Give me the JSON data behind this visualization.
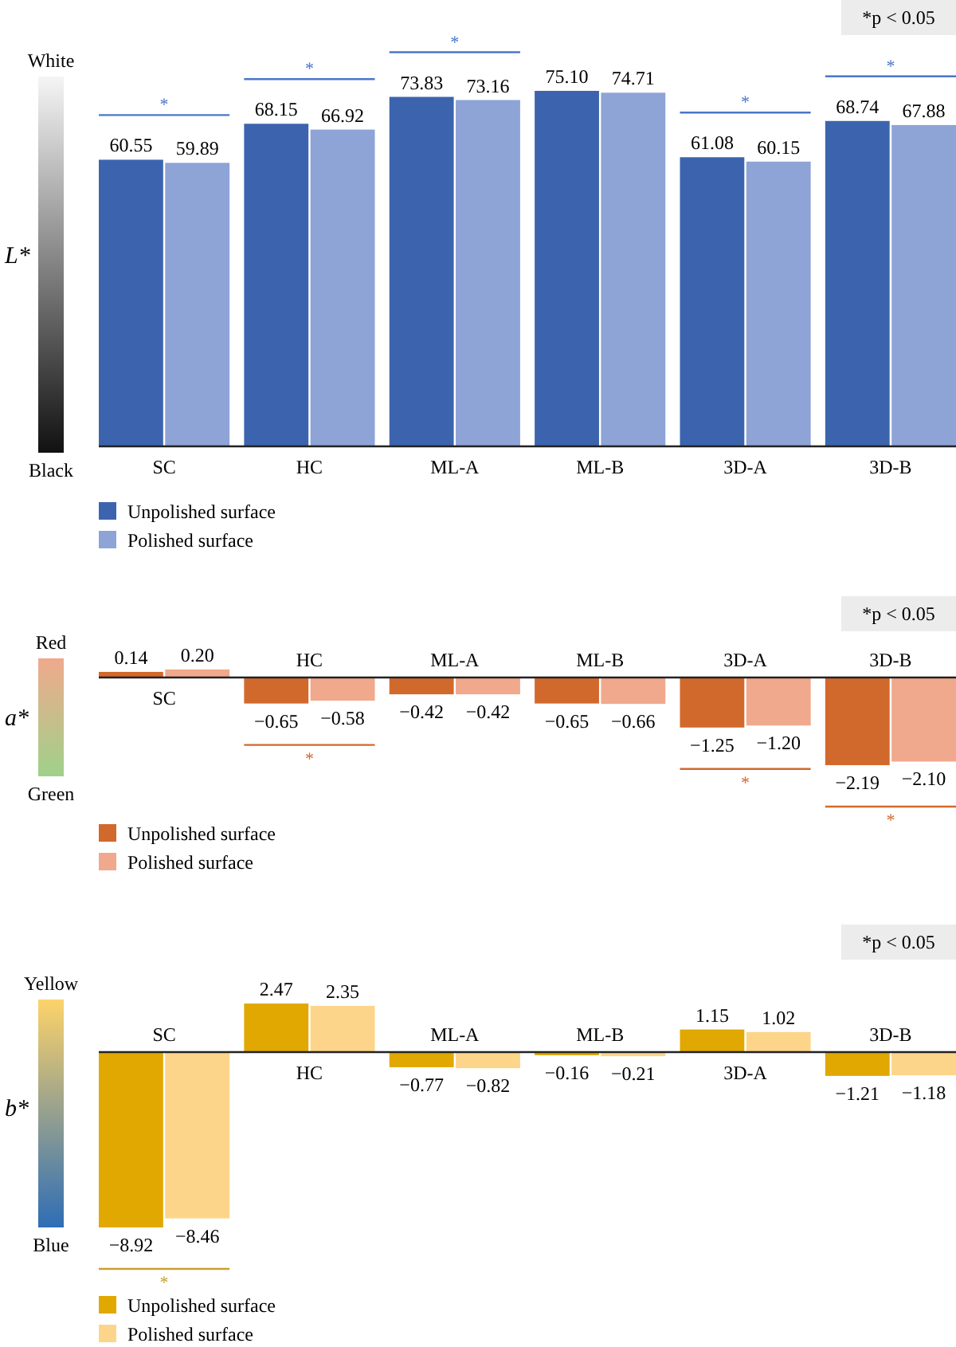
{
  "chart_data": [
    {
      "type": "bar",
      "ylabel": "L*",
      "categories": [
        "SC",
        "HC",
        "ML-A",
        "ML-B",
        "3D-A",
        "3D-B"
      ],
      "series": [
        {
          "name": "Unpolished surface",
          "color": "#3c64ae",
          "values": [
            60.55,
            68.15,
            73.83,
            75.1,
            61.08,
            68.74
          ],
          "value_labels": [
            "60.55",
            "68.15",
            "73.83",
            "75.10",
            "61.08",
            "68.74"
          ]
        },
        {
          "name": "Polished surface",
          "color": "#8ea3d6",
          "values": [
            59.89,
            66.92,
            73.16,
            74.71,
            60.15,
            67.88
          ],
          "value_labels": [
            "59.89",
            "66.92",
            "73.16",
            "74.71",
            "60.15",
            "67.88"
          ]
        }
      ],
      "tick_labels": "x",
      "legend": "bottom left",
      "annotations": [
        "*p < 0.05",
        "White",
        "Black",
        {
          "text": "*",
          "x": "SC",
          "y": 60.55
        },
        {
          "text": "*",
          "x": "HC",
          "y": 68.15
        },
        {
          "text": "*",
          "x": "ML-A",
          "y": 73.83
        },
        {
          "text": "*",
          "x": "3D-A",
          "y": 61.08
        },
        {
          "text": "*",
          "x": "3D-B",
          "y": 68.74
        }
      ]
    },
    {
      "type": "bar",
      "ylabel": "a*",
      "categories": [
        "SC",
        "HC",
        "ML-A",
        "ML-B",
        "3D-A",
        "3D-B"
      ],
      "series": [
        {
          "name": "Unpolished surface",
          "color": "#d2692c",
          "values": [
            0.14,
            -0.65,
            -0.42,
            -0.65,
            -1.25,
            -2.19
          ],
          "value_labels": [
            "0.14",
            "−0.65",
            "−0.42",
            "−0.65",
            "−1.25",
            "−2.19"
          ]
        },
        {
          "name": "Polished surface",
          "color": "#f0a98c",
          "values": [
            0.2,
            -0.58,
            -0.42,
            -0.66,
            -1.2,
            -2.1
          ],
          "value_labels": [
            "0.20",
            "−0.58",
            "−0.42",
            "−0.66",
            "−1.20",
            "−2.10"
          ]
        }
      ],
      "tick_labels": "x",
      "legend": "bottom left",
      "annotations": [
        "*p < 0.05",
        "Red",
        "Green",
        {
          "text": "*",
          "x": "HC",
          "y": -0.65
        },
        {
          "text": "*",
          "x": "3D-A",
          "y": -1.25
        },
        {
          "text": "*",
          "x": "3D-B",
          "y": -2.19
        }
      ]
    },
    {
      "type": "bar",
      "ylabel": "b*",
      "categories": [
        "SC",
        "HC",
        "ML-A",
        "ML-B",
        "3D-A",
        "3D-B"
      ],
      "series": [
        {
          "name": "Unpolished surface",
          "color": "#e0a800",
          "values": [
            -8.92,
            2.47,
            -0.77,
            -0.16,
            1.15,
            -1.21
          ],
          "value_labels": [
            "−8.92",
            "2.47",
            "−0.77",
            "−0.16",
            "1.15",
            "−1.21"
          ]
        },
        {
          "name": "Polished surface",
          "color": "#fdd58a",
          "values": [
            -8.46,
            2.35,
            -0.82,
            -0.21,
            1.02,
            -1.18
          ],
          "value_labels": [
            "−8.46",
            "2.35",
            "−0.82",
            "−0.21",
            "1.02",
            "−1.18"
          ]
        }
      ],
      "tick_labels": "x",
      "legend": "bottom left",
      "annotations": [
        "*p < 0.05",
        "Yellow",
        "Blue",
        {
          "text": "*",
          "x": "SC",
          "y": -8.92
        }
      ]
    }
  ]
}
